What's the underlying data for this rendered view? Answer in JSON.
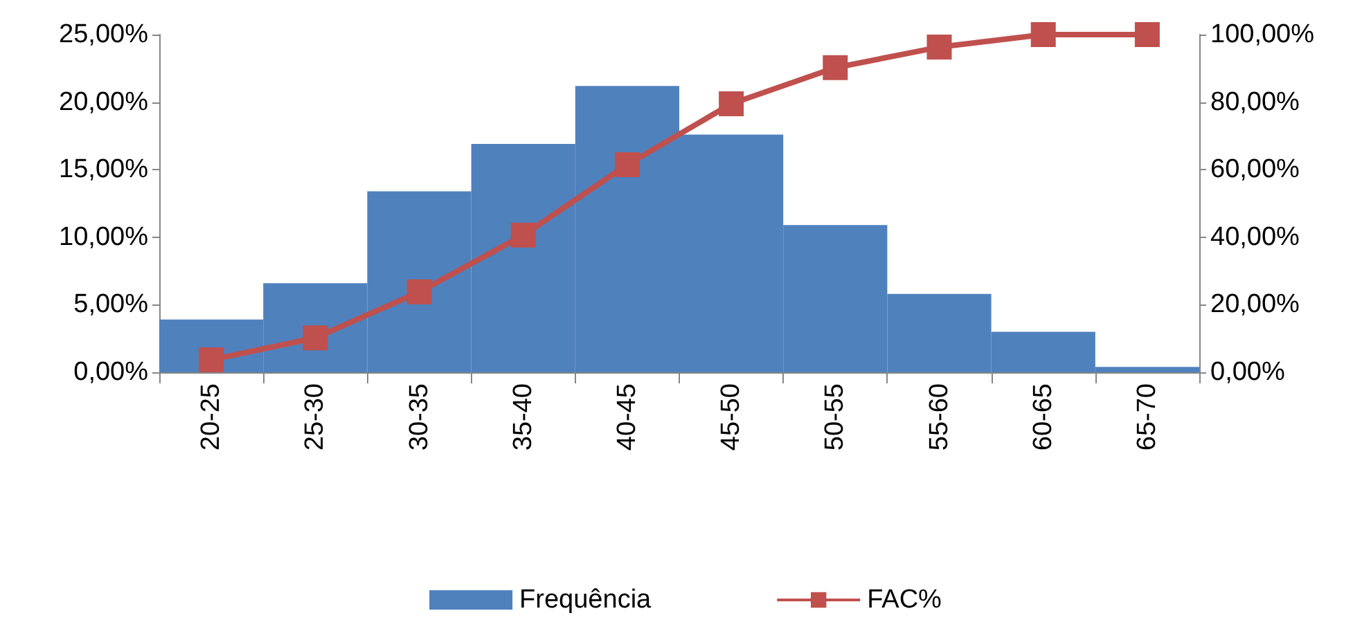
{
  "chart_data": {
    "type": "bar",
    "categories": [
      "20-25",
      "25-30",
      "30-35",
      "35-40",
      "40-45",
      "45-50",
      "50-55",
      "55-60",
      "60-65",
      "65-70"
    ],
    "series": [
      {
        "name": "Frequência",
        "color": "#4f81bd",
        "values": [
          3.9,
          6.6,
          13.4,
          16.9,
          21.2,
          17.6,
          10.9,
          5.8,
          3.0,
          0.4
        ]
      },
      {
        "name": "FAC%",
        "type": "line",
        "axis": "y2",
        "color": "#c0504d",
        "marker": "square",
        "values": [
          3.7,
          10.2,
          23.8,
          40.6,
          61.5,
          79.5,
          90.2,
          96.3,
          100,
          100
        ]
      }
    ],
    "ylim": [
      0,
      25
    ],
    "yticks": [
      {
        "value": 0,
        "label": "0,00%"
      },
      {
        "value": 5,
        "label": "5,00%"
      },
      {
        "value": 10,
        "label": "10,00%"
      },
      {
        "value": 15,
        "label": "15,00%"
      },
      {
        "value": 20,
        "label": "20,00%"
      },
      {
        "value": 25,
        "label": "25,00%"
      }
    ],
    "y2lim": [
      0,
      100
    ],
    "y2ticks": [
      {
        "value": 0,
        "label": "0,00%"
      },
      {
        "value": 20,
        "label": "20,00%"
      },
      {
        "value": 40,
        "label": "40,00%"
      },
      {
        "value": 60,
        "label": "60,00%"
      },
      {
        "value": 80,
        "label": "80,00%"
      },
      {
        "value": 100,
        "label": "100,00%"
      }
    ],
    "grid": false,
    "legend": "bottom"
  }
}
